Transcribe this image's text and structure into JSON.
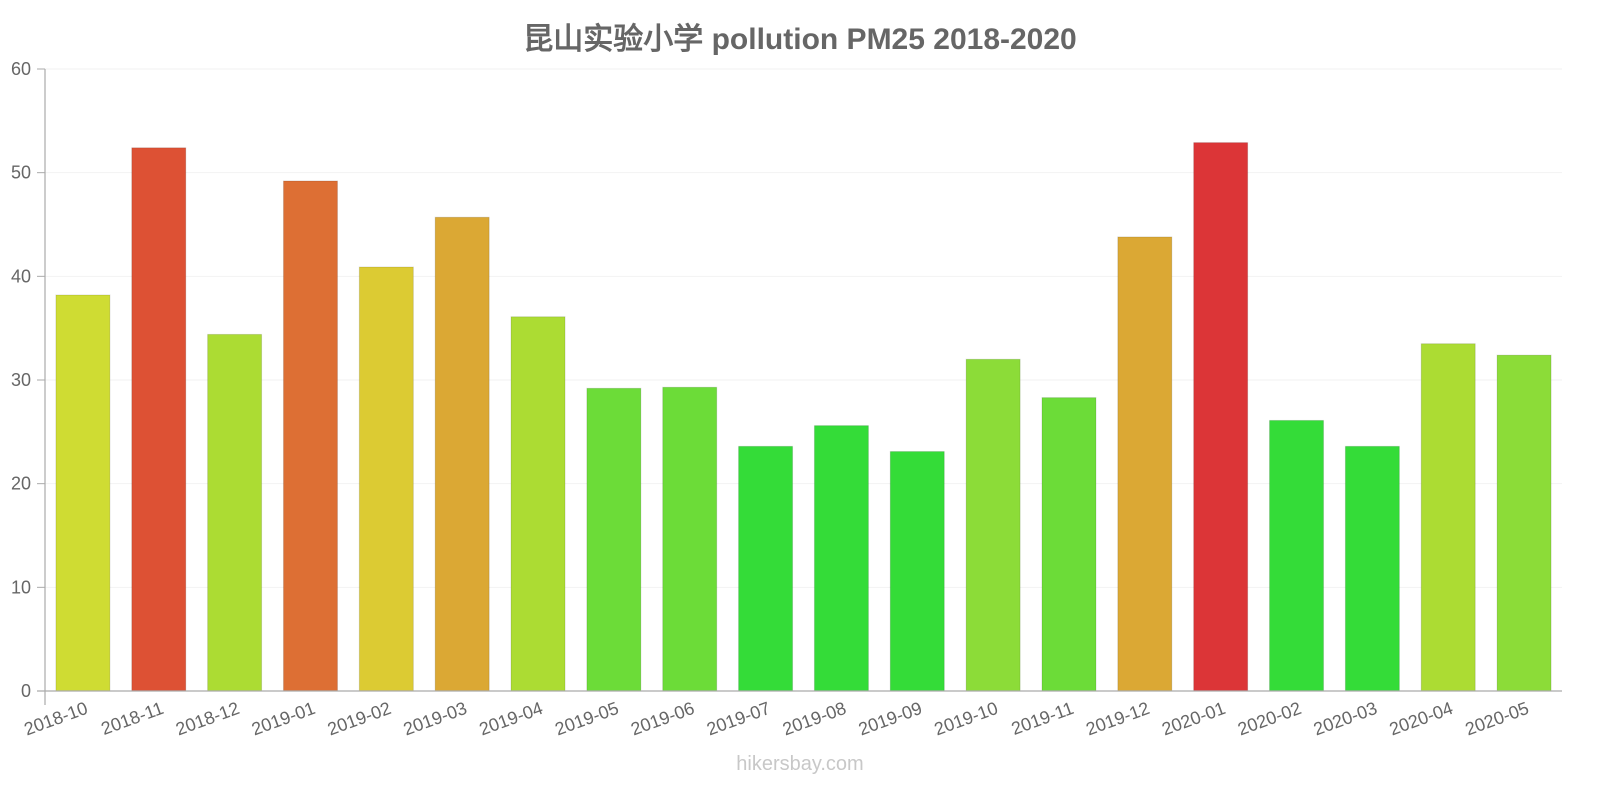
{
  "title": "昆山实验小学 pollution PM25 2018-2020",
  "watermark": "hikersbay.com",
  "chart_data": {
    "type": "bar",
    "title": "昆山实验小学 pollution PM25 2018-2020",
    "xlabel": "",
    "ylabel": "",
    "ylim": [
      0,
      60
    ],
    "yticks": [
      0,
      10,
      20,
      30,
      40,
      50,
      60
    ],
    "grid": true,
    "legend": null,
    "categories": [
      "2018-10",
      "2018-11",
      "2018-12",
      "2019-01",
      "2019-02",
      "2019-03",
      "2019-04",
      "2019-05",
      "2019-06",
      "2019-07",
      "2019-08",
      "2019-09",
      "2019-10",
      "2019-11",
      "2019-12",
      "2020-01",
      "2020-02",
      "2020-03",
      "2020-04",
      "2020-05"
    ],
    "values": [
      38.2,
      52.4,
      34.4,
      49.2,
      40.9,
      45.7,
      36.1,
      29.2,
      29.3,
      23.6,
      25.6,
      23.1,
      32.0,
      28.3,
      43.8,
      52.9,
      26.1,
      23.6,
      33.5,
      32.4
    ],
    "colors": [
      "#cfdc33",
      "#dd5134",
      "#acdc33",
      "#dd6f34",
      "#dccb33",
      "#dba834",
      "#acdc33",
      "#6cdc38",
      "#6cdc38",
      "#34dc38",
      "#34dc38",
      "#34dc38",
      "#8cdc38",
      "#6cdc38",
      "#dba834",
      "#dc3537",
      "#34dc38",
      "#34dc38",
      "#acdc33",
      "#8cdc38"
    ]
  }
}
